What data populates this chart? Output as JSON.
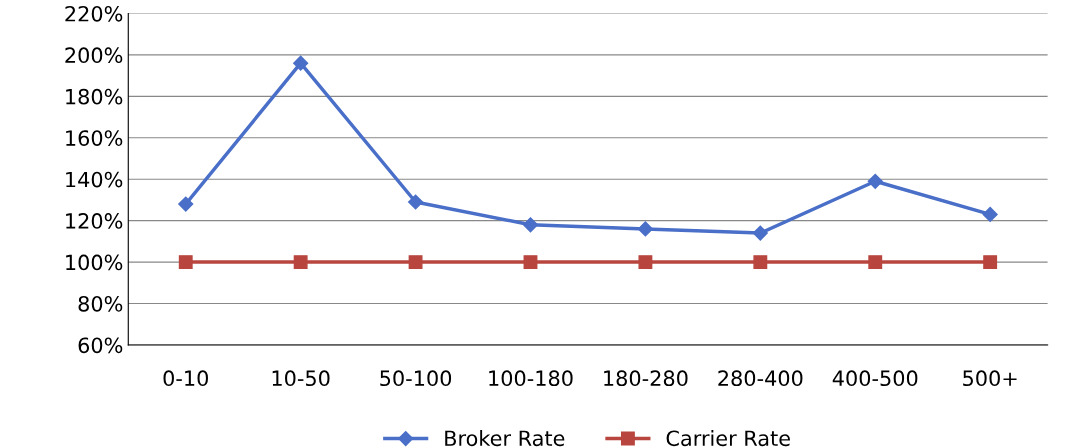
{
  "chart_data": {
    "type": "line",
    "categories": [
      "0-10",
      "10-50",
      "50-100",
      "100-180",
      "180-280",
      "280-400",
      "400-500",
      "500+"
    ],
    "series": [
      {
        "name": "Broker Rate",
        "color": "#4a6fc8",
        "marker": "diamond",
        "values": [
          128,
          196,
          129,
          118,
          116,
          114,
          139,
          123
        ]
      },
      {
        "name": "Carrier Rate",
        "color": "#b8463f",
        "marker": "square",
        "values": [
          100,
          100,
          100,
          100,
          100,
          100,
          100,
          100
        ]
      }
    ],
    "ylim": [
      60,
      220
    ],
    "yticks": [
      {
        "value": 60,
        "label": "60%"
      },
      {
        "value": 80,
        "label": "80%"
      },
      {
        "value": 100,
        "label": "100%"
      },
      {
        "value": 120,
        "label": "120%"
      },
      {
        "value": 140,
        "label": "140%"
      },
      {
        "value": 160,
        "label": "160%"
      },
      {
        "value": 180,
        "label": "180%"
      },
      {
        "value": 200,
        "label": "200%"
      },
      {
        "value": 220,
        "label": "220%"
      }
    ],
    "grid": "y",
    "legend": "bottom",
    "line_style": "solid"
  }
}
